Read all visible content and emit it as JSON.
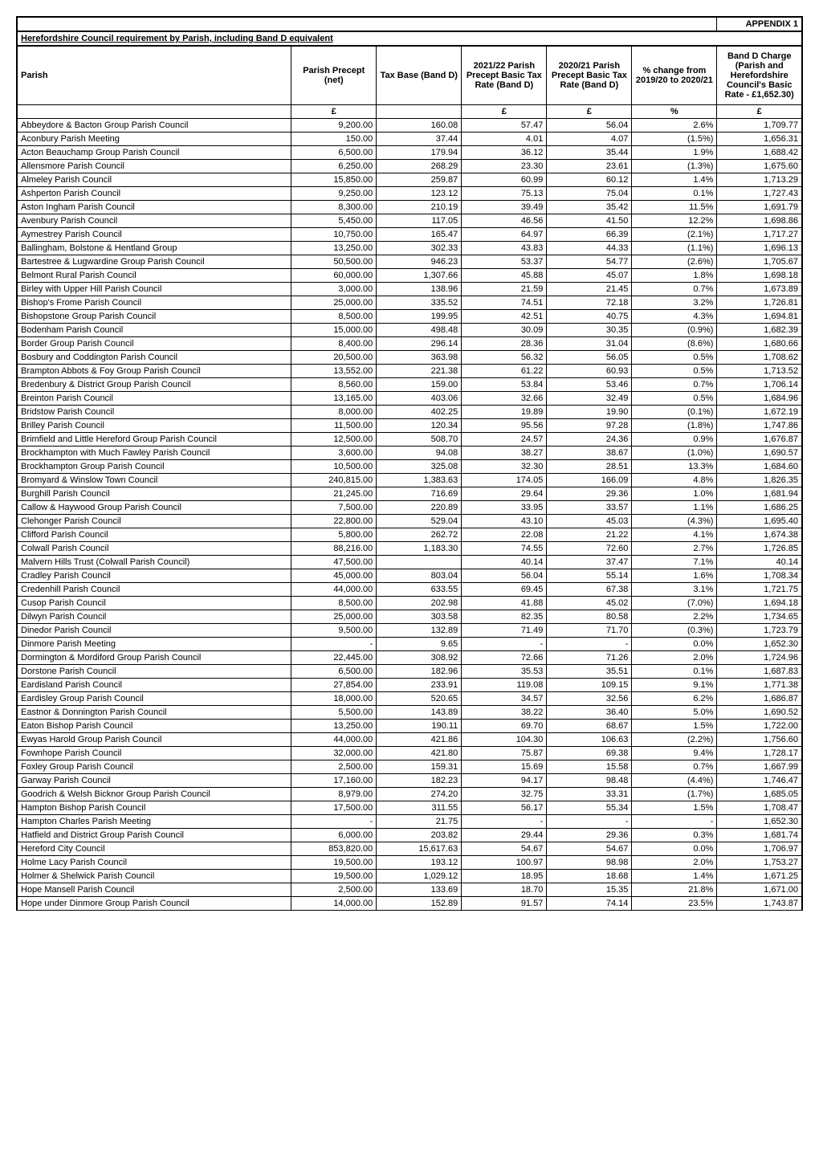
{
  "appendix": "APPENDIX 1",
  "title": "Herefordshire Council requirement by Parish, including Band D equivalent",
  "columns": {
    "parish": "Parish",
    "precept": "Parish Precept (net)",
    "taxbase": "Tax Base (Band D)",
    "rate2122": "2021/22 Parish Precept Basic Tax Rate (Band D)",
    "rate2021": "2020/21 Parish Precept Basic Tax Rate (Band D)",
    "change": "% change from 2019/20 to 2020/21",
    "bandd": "Band D Charge (Parish and Herefordshire Council's Basic Rate - £1,652.30)"
  },
  "units": {
    "precept": "£",
    "rate2122": "£",
    "rate2021": "£",
    "change": "%",
    "bandd": "£"
  },
  "rows": [
    {
      "parish": "Abbeydore & Bacton Group Parish Council",
      "precept": "9,200.00",
      "taxbase": "160.08",
      "rate2122": "57.47",
      "rate2021": "56.04",
      "change": "2.6%",
      "bandd": "1,709.77"
    },
    {
      "parish": "Aconbury Parish Meeting",
      "precept": "150.00",
      "taxbase": "37.44",
      "rate2122": "4.01",
      "rate2021": "4.07",
      "change": "(1.5%)",
      "bandd": "1,656.31"
    },
    {
      "parish": "Acton Beauchamp Group Parish Council",
      "precept": "6,500.00",
      "taxbase": "179.94",
      "rate2122": "36.12",
      "rate2021": "35.44",
      "change": "1.9%",
      "bandd": "1,688.42"
    },
    {
      "parish": "Allensmore Parish Council",
      "precept": "6,250.00",
      "taxbase": "268.29",
      "rate2122": "23.30",
      "rate2021": "23.61",
      "change": "(1.3%)",
      "bandd": "1,675.60"
    },
    {
      "parish": "Almeley Parish Council",
      "precept": "15,850.00",
      "taxbase": "259.87",
      "rate2122": "60.99",
      "rate2021": "60.12",
      "change": "1.4%",
      "bandd": "1,713.29"
    },
    {
      "parish": "Ashperton Parish Council",
      "precept": "9,250.00",
      "taxbase": "123.12",
      "rate2122": "75.13",
      "rate2021": "75.04",
      "change": "0.1%",
      "bandd": "1,727.43"
    },
    {
      "parish": "Aston Ingham Parish Council",
      "precept": "8,300.00",
      "taxbase": "210.19",
      "rate2122": "39.49",
      "rate2021": "35.42",
      "change": "11.5%",
      "bandd": "1,691.79"
    },
    {
      "parish": "Avenbury Parish Council",
      "precept": "5,450.00",
      "taxbase": "117.05",
      "rate2122": "46.56",
      "rate2021": "41.50",
      "change": "12.2%",
      "bandd": "1,698.86"
    },
    {
      "parish": "Aymestrey Parish Council",
      "precept": "10,750.00",
      "taxbase": "165.47",
      "rate2122": "64.97",
      "rate2021": "66.39",
      "change": "(2.1%)",
      "bandd": "1,717.27"
    },
    {
      "parish": "Ballingham, Bolstone & Hentland Group",
      "precept": "13,250.00",
      "taxbase": "302.33",
      "rate2122": "43.83",
      "rate2021": "44.33",
      "change": "(1.1%)",
      "bandd": "1,696.13"
    },
    {
      "parish": "Bartestree & Lugwardine Group Parish Council",
      "precept": "50,500.00",
      "taxbase": "946.23",
      "rate2122": "53.37",
      "rate2021": "54.77",
      "change": "(2.6%)",
      "bandd": "1,705.67"
    },
    {
      "parish": "Belmont Rural Parish Council",
      "precept": "60,000.00",
      "taxbase": "1,307.66",
      "rate2122": "45.88",
      "rate2021": "45.07",
      "change": "1.8%",
      "bandd": "1,698.18"
    },
    {
      "parish": "Birley with Upper Hill Parish Council",
      "precept": "3,000.00",
      "taxbase": "138.96",
      "rate2122": "21.59",
      "rate2021": "21.45",
      "change": "0.7%",
      "bandd": "1,673.89"
    },
    {
      "parish": "Bishop's Frome Parish Council",
      "precept": "25,000.00",
      "taxbase": "335.52",
      "rate2122": "74.51",
      "rate2021": "72.18",
      "change": "3.2%",
      "bandd": "1,726.81"
    },
    {
      "parish": "Bishopstone Group Parish Council",
      "precept": "8,500.00",
      "taxbase": "199.95",
      "rate2122": "42.51",
      "rate2021": "40.75",
      "change": "4.3%",
      "bandd": "1,694.81"
    },
    {
      "parish": "Bodenham Parish Council",
      "precept": "15,000.00",
      "taxbase": "498.48",
      "rate2122": "30.09",
      "rate2021": "30.35",
      "change": "(0.9%)",
      "bandd": "1,682.39"
    },
    {
      "parish": "Border Group Parish Council",
      "precept": "8,400.00",
      "taxbase": "296.14",
      "rate2122": "28.36",
      "rate2021": "31.04",
      "change": "(8.6%)",
      "bandd": "1,680.66"
    },
    {
      "parish": "Bosbury and Coddington Parish Council",
      "precept": "20,500.00",
      "taxbase": "363.98",
      "rate2122": "56.32",
      "rate2021": "56.05",
      "change": "0.5%",
      "bandd": "1,708.62"
    },
    {
      "parish": "Brampton Abbots & Foy Group Parish Council",
      "precept": "13,552.00",
      "taxbase": "221.38",
      "rate2122": "61.22",
      "rate2021": "60.93",
      "change": "0.5%",
      "bandd": "1,713.52"
    },
    {
      "parish": "Bredenbury & District Group Parish Council",
      "precept": "8,560.00",
      "taxbase": "159.00",
      "rate2122": "53.84",
      "rate2021": "53.46",
      "change": "0.7%",
      "bandd": "1,706.14"
    },
    {
      "parish": "Breinton Parish Council",
      "precept": "13,165.00",
      "taxbase": "403.06",
      "rate2122": "32.66",
      "rate2021": "32.49",
      "change": "0.5%",
      "bandd": "1,684.96"
    },
    {
      "parish": "Bridstow Parish Council",
      "precept": "8,000.00",
      "taxbase": "402.25",
      "rate2122": "19.89",
      "rate2021": "19.90",
      "change": "(0.1%)",
      "bandd": "1,672.19"
    },
    {
      "parish": "Brilley Parish Council",
      "precept": "11,500.00",
      "taxbase": "120.34",
      "rate2122": "95.56",
      "rate2021": "97.28",
      "change": "(1.8%)",
      "bandd": "1,747.86"
    },
    {
      "parish": "Brimfield and Little Hereford Group Parish Council",
      "precept": "12,500.00",
      "taxbase": "508.70",
      "rate2122": "24.57",
      "rate2021": "24.36",
      "change": "0.9%",
      "bandd": "1,676.87"
    },
    {
      "parish": "Brockhampton with Much Fawley Parish Council",
      "precept": "3,600.00",
      "taxbase": "94.08",
      "rate2122": "38.27",
      "rate2021": "38.67",
      "change": "(1.0%)",
      "bandd": "1,690.57"
    },
    {
      "parish": "Brockhampton Group Parish Council",
      "precept": "10,500.00",
      "taxbase": "325.08",
      "rate2122": "32.30",
      "rate2021": "28.51",
      "change": "13.3%",
      "bandd": "1,684.60"
    },
    {
      "parish": "Bromyard & Winslow Town Council",
      "precept": "240,815.00",
      "taxbase": "1,383.63",
      "rate2122": "174.05",
      "rate2021": "166.09",
      "change": "4.8%",
      "bandd": "1,826.35"
    },
    {
      "parish": "Burghill Parish Council",
      "precept": "21,245.00",
      "taxbase": "716.69",
      "rate2122": "29.64",
      "rate2021": "29.36",
      "change": "1.0%",
      "bandd": "1,681.94"
    },
    {
      "parish": "Callow & Haywood Group Parish Council",
      "precept": "7,500.00",
      "taxbase": "220.89",
      "rate2122": "33.95",
      "rate2021": "33.57",
      "change": "1.1%",
      "bandd": "1,686.25"
    },
    {
      "parish": "Clehonger Parish Council",
      "precept": "22,800.00",
      "taxbase": "529.04",
      "rate2122": "43.10",
      "rate2021": "45.03",
      "change": "(4.3%)",
      "bandd": "1,695.40"
    },
    {
      "parish": "Clifford Parish Council",
      "precept": "5,800.00",
      "taxbase": "262.72",
      "rate2122": "22.08",
      "rate2021": "21.22",
      "change": "4.1%",
      "bandd": "1,674.38"
    },
    {
      "parish": "Colwall Parish Council",
      "precept": "88,216.00",
      "taxbase": "1,183.30",
      "rate2122": "74.55",
      "rate2021": "72.60",
      "change": "2.7%",
      "bandd": "1,726.85"
    },
    {
      "parish": "Malvern Hills Trust (Colwall Parish Council)",
      "precept": "47,500.00",
      "taxbase": "",
      "rate2122": "40.14",
      "rate2021": "37.47",
      "change": "7.1%",
      "bandd": "40.14"
    },
    {
      "parish": "Cradley Parish Council",
      "precept": "45,000.00",
      "taxbase": "803.04",
      "rate2122": "56.04",
      "rate2021": "55.14",
      "change": "1.6%",
      "bandd": "1,708.34"
    },
    {
      "parish": "Credenhill Parish Council",
      "precept": "44,000.00",
      "taxbase": "633.55",
      "rate2122": "69.45",
      "rate2021": "67.38",
      "change": "3.1%",
      "bandd": "1,721.75"
    },
    {
      "parish": "Cusop Parish Council",
      "precept": "8,500.00",
      "taxbase": "202.98",
      "rate2122": "41.88",
      "rate2021": "45.02",
      "change": "(7.0%)",
      "bandd": "1,694.18"
    },
    {
      "parish": "Dilwyn Parish Council",
      "precept": "25,000.00",
      "taxbase": "303.58",
      "rate2122": "82.35",
      "rate2021": "80.58",
      "change": "2.2%",
      "bandd": "1,734.65"
    },
    {
      "parish": "Dinedor Parish Council",
      "precept": "9,500.00",
      "taxbase": "132.89",
      "rate2122": "71.49",
      "rate2021": "71.70",
      "change": "(0.3%)",
      "bandd": "1,723.79"
    },
    {
      "parish": "Dinmore Parish Meeting",
      "precept": "-",
      "taxbase": "9.65",
      "rate2122": "-",
      "rate2021": "-",
      "change": "0.0%",
      "bandd": "1,652.30"
    },
    {
      "parish": "Dormington & Mordiford Group Parish Council",
      "precept": "22,445.00",
      "taxbase": "308.92",
      "rate2122": "72.66",
      "rate2021": "71.26",
      "change": "2.0%",
      "bandd": "1,724.96"
    },
    {
      "parish": "Dorstone Parish Council",
      "precept": "6,500.00",
      "taxbase": "182.96",
      "rate2122": "35.53",
      "rate2021": "35.51",
      "change": "0.1%",
      "bandd": "1,687.83"
    },
    {
      "parish": "Eardisland Parish Council",
      "precept": "27,854.00",
      "taxbase": "233.91",
      "rate2122": "119.08",
      "rate2021": "109.15",
      "change": "9.1%",
      "bandd": "1,771.38"
    },
    {
      "parish": "Eardisley Group Parish Council",
      "precept": "18,000.00",
      "taxbase": "520.65",
      "rate2122": "34.57",
      "rate2021": "32.56",
      "change": "6.2%",
      "bandd": "1,686.87"
    },
    {
      "parish": "Eastnor & Donnington Parish Council",
      "precept": "5,500.00",
      "taxbase": "143.89",
      "rate2122": "38.22",
      "rate2021": "36.40",
      "change": "5.0%",
      "bandd": "1,690.52"
    },
    {
      "parish": "Eaton Bishop Parish Council",
      "precept": "13,250.00",
      "taxbase": "190.11",
      "rate2122": "69.70",
      "rate2021": "68.67",
      "change": "1.5%",
      "bandd": "1,722.00"
    },
    {
      "parish": "Ewyas Harold Group Parish Council",
      "precept": "44,000.00",
      "taxbase": "421.86",
      "rate2122": "104.30",
      "rate2021": "106.63",
      "change": "(2.2%)",
      "bandd": "1,756.60"
    },
    {
      "parish": "Fownhope Parish Council",
      "precept": "32,000.00",
      "taxbase": "421.80",
      "rate2122": "75.87",
      "rate2021": "69.38",
      "change": "9.4%",
      "bandd": "1,728.17"
    },
    {
      "parish": "Foxley Group Parish Council",
      "precept": "2,500.00",
      "taxbase": "159.31",
      "rate2122": "15.69",
      "rate2021": "15.58",
      "change": "0.7%",
      "bandd": "1,667.99"
    },
    {
      "parish": "Garway Parish Council",
      "precept": "17,160.00",
      "taxbase": "182.23",
      "rate2122": "94.17",
      "rate2021": "98.48",
      "change": "(4.4%)",
      "bandd": "1,746.47"
    },
    {
      "parish": "Goodrich & Welsh Bicknor Group Parish Council",
      "precept": "8,979.00",
      "taxbase": "274.20",
      "rate2122": "32.75",
      "rate2021": "33.31",
      "change": "(1.7%)",
      "bandd": "1,685.05"
    },
    {
      "parish": "Hampton Bishop Parish Council",
      "precept": "17,500.00",
      "taxbase": "311.55",
      "rate2122": "56.17",
      "rate2021": "55.34",
      "change": "1.5%",
      "bandd": "1,708.47"
    },
    {
      "parish": "Hampton Charles Parish Meeting",
      "precept": "-",
      "taxbase": "21.75",
      "rate2122": "-",
      "rate2021": "-",
      "change": "-",
      "bandd": "1,652.30"
    },
    {
      "parish": "Hatfield and District Group Parish Council",
      "precept": "6,000.00",
      "taxbase": "203.82",
      "rate2122": "29.44",
      "rate2021": "29.36",
      "change": "0.3%",
      "bandd": "1,681.74"
    },
    {
      "parish": "Hereford City Council",
      "precept": "853,820.00",
      "taxbase": "15,617.63",
      "rate2122": "54.67",
      "rate2021": "54.67",
      "change": "0.0%",
      "bandd": "1,706.97"
    },
    {
      "parish": "Holme Lacy Parish Council",
      "precept": "19,500.00",
      "taxbase": "193.12",
      "rate2122": "100.97",
      "rate2021": "98.98",
      "change": "2.0%",
      "bandd": "1,753.27"
    },
    {
      "parish": "Holmer & Shelwick Parish Council",
      "precept": "19,500.00",
      "taxbase": "1,029.12",
      "rate2122": "18.95",
      "rate2021": "18.68",
      "change": "1.4%",
      "bandd": "1,671.25"
    },
    {
      "parish": "Hope Mansell Parish Council",
      "precept": "2,500.00",
      "taxbase": "133.69",
      "rate2122": "18.70",
      "rate2021": "15.35",
      "change": "21.8%",
      "bandd": "1,671.00"
    },
    {
      "parish": "Hope under Dinmore Group Parish Council",
      "precept": "14,000.00",
      "taxbase": "152.89",
      "rate2122": "91.57",
      "rate2021": "74.14",
      "change": "23.5%",
      "bandd": "1,743.87"
    }
  ]
}
